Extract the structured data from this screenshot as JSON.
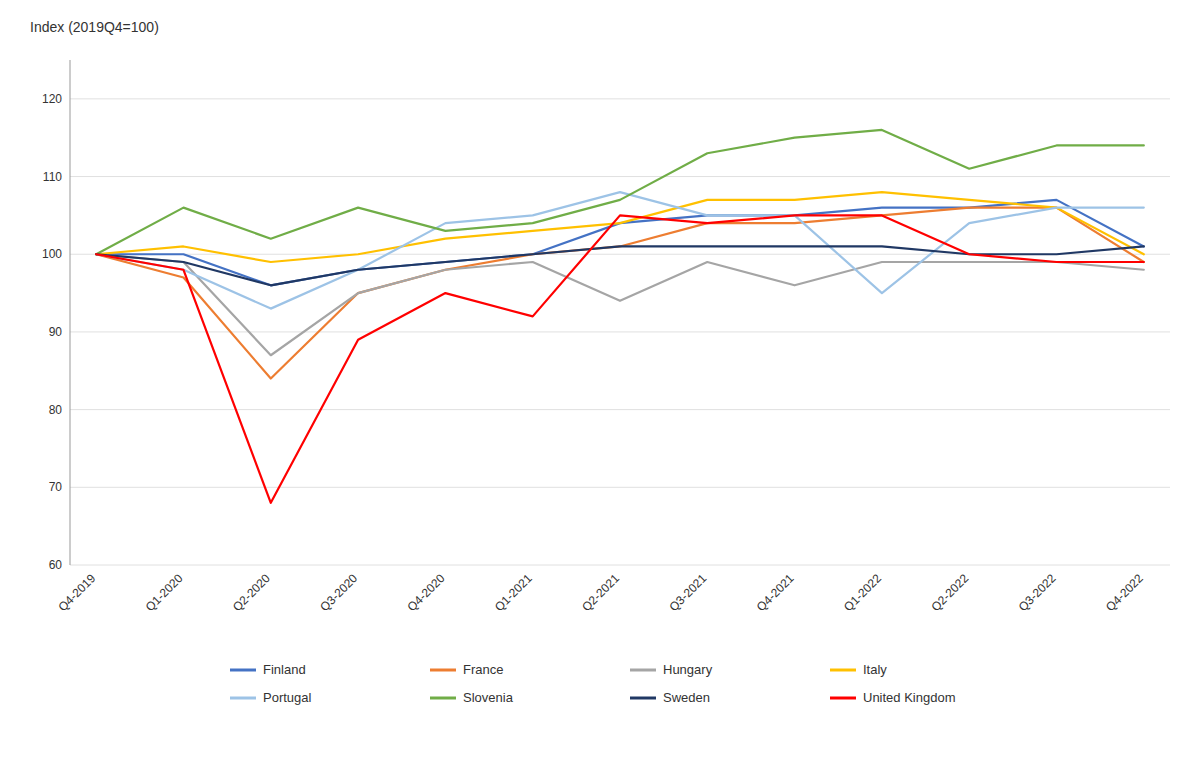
{
  "chart_data": {
    "type": "line",
    "y_label": "Index (2019Q4=100)",
    "categories": [
      "Q4-2019",
      "Q1-2020",
      "Q2-2020",
      "Q3-2020",
      "Q4-2020",
      "Q1-2021",
      "Q2-2021",
      "Q3-2021",
      "Q4-2021",
      "Q1-2022",
      "Q2-2022",
      "Q3-2022",
      "Q4-2022"
    ],
    "series": [
      {
        "name": "Finland",
        "color": "#4472C4",
        "values": [
          100,
          100,
          96,
          98,
          99,
          100,
          104,
          105,
          105,
          106,
          106,
          107,
          101
        ]
      },
      {
        "name": "France",
        "color": "#ED7D31",
        "values": [
          100,
          97,
          84,
          95,
          98,
          100,
          101,
          104,
          104,
          105,
          106,
          106,
          99
        ]
      },
      {
        "name": "Hungary",
        "color": "#A5A5A5",
        "values": [
          100,
          99,
          87,
          95,
          98,
          99,
          94,
          99,
          96,
          99,
          99,
          99,
          98
        ]
      },
      {
        "name": "Italy",
        "color": "#FFC000",
        "values": [
          100,
          101,
          99,
          100,
          102,
          103,
          104,
          107,
          107,
          108,
          107,
          106,
          100
        ]
      },
      {
        "name": "Portugal",
        "color": "#9DC3E6",
        "values": [
          100,
          98,
          93,
          98,
          104,
          105,
          108,
          105,
          105,
          95,
          104,
          106,
          106
        ]
      },
      {
        "name": "Slovenia",
        "color": "#70AD47",
        "values": [
          100,
          106,
          102,
          106,
          103,
          104,
          107,
          113,
          115,
          116,
          111,
          114,
          114
        ]
      },
      {
        "name": "Sweden",
        "color": "#203864",
        "values": [
          100,
          99,
          96,
          98,
          99,
          100,
          101,
          101,
          101,
          101,
          100,
          100,
          101
        ]
      },
      {
        "name": "United Kingdom",
        "color": "#FF0000",
        "values": [
          100,
          98,
          68,
          89,
          95,
          92,
          105,
          104,
          105,
          105,
          100,
          99,
          99
        ]
      }
    ],
    "ylim": [
      60,
      125
    ],
    "yticks": [
      60,
      70,
      80,
      90,
      100,
      110,
      120
    ],
    "grid": true,
    "legend": "bottom"
  }
}
